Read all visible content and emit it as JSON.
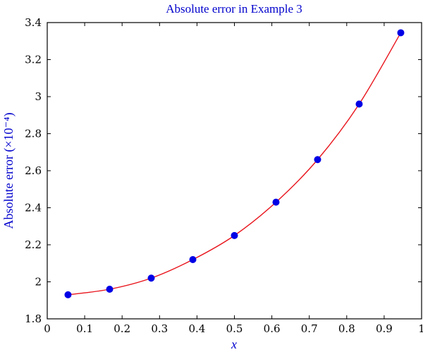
{
  "chart_data": {
    "type": "line",
    "title": "Absolute error in Example 3",
    "xlabel": "x",
    "ylabel": "Absolute error (×10⁻⁴)",
    "xlim": [
      0,
      1
    ],
    "ylim": [
      1.8,
      3.4
    ],
    "x_ticks": [
      "0",
      "0.1",
      "0.2",
      "0.3",
      "0.4",
      "0.5",
      "0.6",
      "0.7",
      "0.8",
      "0.9",
      "1"
    ],
    "y_ticks": [
      "1.8",
      "2",
      "2.2",
      "2.4",
      "2.6",
      "2.8",
      "3",
      "3.2",
      "3.4"
    ],
    "grid": false,
    "series": [
      {
        "line_color": "#e8141c",
        "marker_color": "#0000e6",
        "x": [
          0.0555,
          0.1667,
          0.2778,
          0.3889,
          0.5,
          0.6111,
          0.7222,
          0.8333,
          0.9444
        ],
        "y": [
          1.93,
          1.96,
          2.02,
          2.12,
          2.25,
          2.43,
          2.66,
          2.96,
          3.345
        ]
      }
    ],
    "title_color": "#0000cc",
    "label_color": "#0000cc"
  }
}
